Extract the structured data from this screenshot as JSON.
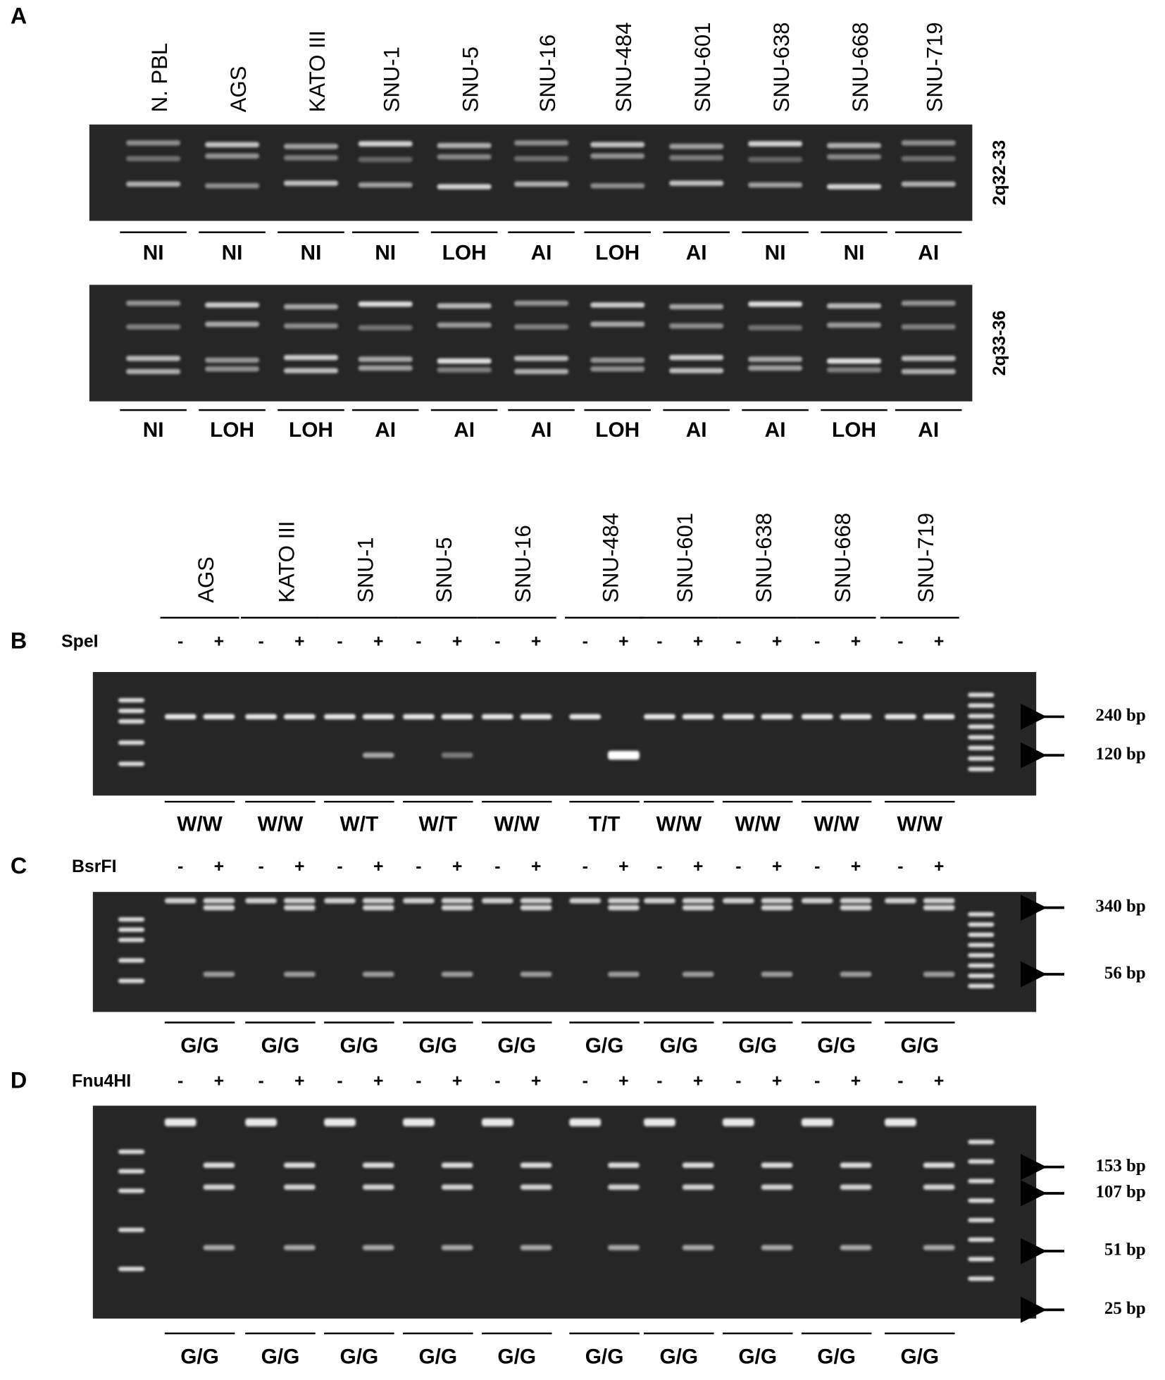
{
  "panel_a": {
    "label": "A",
    "lanes": [
      "N. PBL",
      "AGS",
      "KATO III",
      "SNU-1",
      "SNU-5",
      "SNU-16",
      "SNU-484",
      "SNU-601",
      "SNU-638",
      "SNU-668",
      "SNU-719"
    ],
    "gels": [
      {
        "locus": "2q32-33",
        "calls": [
          "NI",
          "NI",
          "NI",
          "NI",
          "LOH",
          "AI",
          "LOH",
          "AI",
          "NI",
          "NI",
          "AI"
        ]
      },
      {
        "locus": "2q33-36",
        "calls": [
          "NI",
          "LOH",
          "LOH",
          "AI",
          "AI",
          "AI",
          "LOH",
          "AI",
          "AI",
          "LOH",
          "AI"
        ]
      }
    ]
  },
  "lanes_bcd": [
    "AGS",
    "KATO III",
    "SNU-1",
    "SNU-5",
    "SNU-16",
    "SNU-484",
    "SNU-601",
    "SNU-638",
    "SNU-668",
    "SNU-719"
  ],
  "signs": [
    "-",
    "+"
  ],
  "panel_b": {
    "label": "B",
    "enzyme": "SpeI",
    "markers": [
      "240 bp",
      "120 bp"
    ],
    "genotypes": [
      "W/W",
      "W/W",
      "W/T",
      "W/T",
      "W/W",
      "T/T",
      "W/W",
      "W/W",
      "W/W",
      "W/W"
    ]
  },
  "panel_c": {
    "label": "C",
    "enzyme": "BsrFI",
    "markers": [
      "340 bp",
      "56 bp"
    ],
    "genotypes": [
      "G/G",
      "G/G",
      "G/G",
      "G/G",
      "G/G",
      "G/G",
      "G/G",
      "G/G",
      "G/G",
      "G/G"
    ]
  },
  "panel_d": {
    "label": "D",
    "enzyme": "Fnu4HI",
    "markers": [
      "153 bp",
      "107 bp",
      "51 bp",
      "25 bp"
    ],
    "genotypes": [
      "G/G",
      "G/G",
      "G/G",
      "G/G",
      "G/G",
      "G/G",
      "G/G",
      "G/G",
      "G/G",
      "G/G"
    ]
  }
}
